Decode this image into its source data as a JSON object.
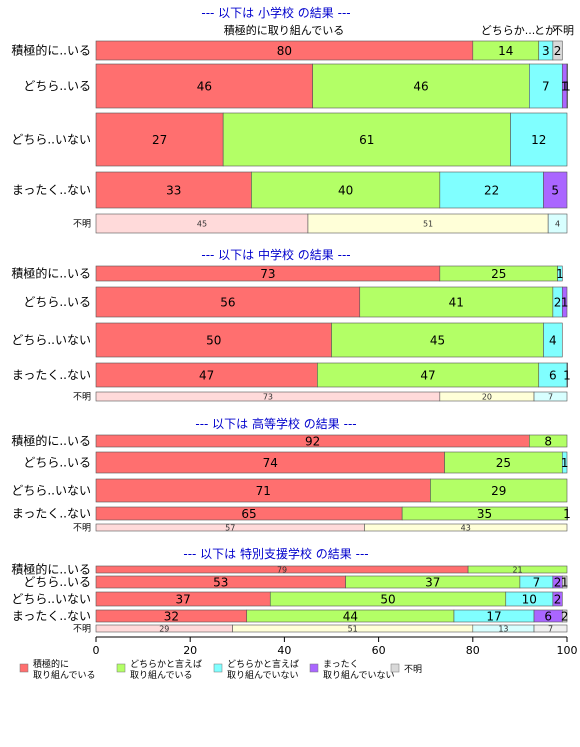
{
  "legend": [
    {
      "name": "積極的に\n取り組んでいる",
      "color": "#ff6f6f"
    },
    {
      "name": "どちらかと言えば\n取り組んでいる",
      "color": "#b3ff66"
    },
    {
      "name": "どちらかと言えば\n取り組んでいない",
      "color": "#80ffff"
    },
    {
      "name": "まったく\n取り組んでいない",
      "color": "#aa66ff"
    },
    {
      "name": "不明",
      "color": "#d9d9d9"
    }
  ],
  "unknown_palette": [
    "#ffdada",
    "#ffffd8",
    "#d8ffff",
    "#ececff",
    "#f0f0f0"
  ],
  "chart_data": {
    "type": "bar",
    "orientation": "horizontal-stacked-percent",
    "xlim": [
      0,
      100
    ],
    "xticks": [
      0,
      20,
      40,
      60,
      80,
      100
    ],
    "header_labels": [
      "積極的に取り組んでいる",
      "どちらか...",
      "とか",
      "不明"
    ],
    "sections": [
      {
        "title": "--- 以下は 小学校 の結果 ---",
        "rows": [
          {
            "label": "積極的に..いる",
            "values": [
              80,
              14,
              3,
              0,
              2
            ]
          },
          {
            "label": "どちら..いる",
            "values": [
              46,
              46,
              7,
              1,
              1
            ]
          },
          {
            "label": "どちら..いない",
            "values": [
              27,
              61,
              12,
              0,
              0
            ]
          },
          {
            "label": "まったく..ない",
            "values": [
              33,
              40,
              22,
              5,
              0
            ]
          },
          {
            "label": "不明",
            "values": [
              45,
              51,
              4,
              0,
              0
            ],
            "unknown": true
          }
        ]
      },
      {
        "title": "--- 以下は 中学校 の結果 ---",
        "rows": [
          {
            "label": "積極的に..いる",
            "values": [
              73,
              25,
              1,
              0,
              0
            ]
          },
          {
            "label": "どちら..いる",
            "values": [
              56,
              41,
              2,
              1,
              0
            ]
          },
          {
            "label": "どちら..いない",
            "values": [
              50,
              45,
              4,
              0,
              0
            ]
          },
          {
            "label": "まったく..ない",
            "values": [
              47,
              47,
              6,
              1,
              0
            ]
          },
          {
            "label": "不明",
            "values": [
              73,
              20,
              7,
              0,
              0
            ],
            "unknown": true
          }
        ]
      },
      {
        "title": "--- 以下は 高等学校 の結果 ---",
        "rows": [
          {
            "label": "積極的に..いる",
            "values": [
              92,
              8,
              0,
              0,
              0
            ]
          },
          {
            "label": "どちら..いる",
            "values": [
              74,
              25,
              1,
              0,
              0
            ]
          },
          {
            "label": "どちら..いない",
            "values": [
              71,
              29,
              0,
              0,
              0
            ]
          },
          {
            "label": "まったく..ない",
            "values": [
              65,
              35,
              1,
              0,
              0
            ]
          },
          {
            "label": "不明",
            "values": [
              57,
              43,
              0,
              0,
              0
            ],
            "unknown": true
          }
        ]
      },
      {
        "title": "--- 以下は 特別支援学校 の結果 ---",
        "rows": [
          {
            "label": "積極的に..いる",
            "values": [
              79,
              21,
              0,
              0,
              0
            ]
          },
          {
            "label": "どちら..いる",
            "values": [
              53,
              37,
              7,
              2,
              1
            ]
          },
          {
            "label": "どちら..いない",
            "values": [
              37,
              50,
              10,
              2,
              0
            ]
          },
          {
            "label": "まったく..ない",
            "values": [
              32,
              44,
              17,
              6,
              2
            ]
          },
          {
            "label": "不明",
            "values": [
              29,
              51,
              13,
              0,
              7
            ],
            "unknown": true
          }
        ]
      }
    ]
  }
}
